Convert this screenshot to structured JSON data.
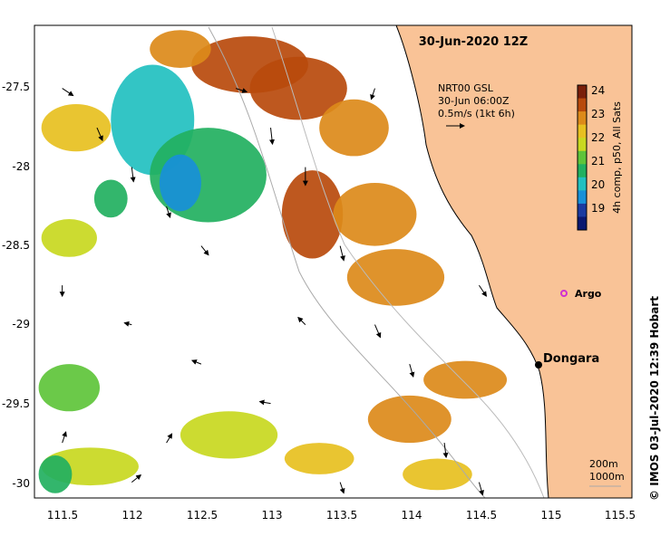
{
  "title": "30-Jun-2020 12Z",
  "current_legend": {
    "line1": "NRT00 GSL",
    "line2": "30-Jun 06:00Z",
    "line3": "0.5m/s (1kt 6h)"
  },
  "colorbar": {
    "label": "4h comp, p50, All Sats",
    "ticks": [
      "24",
      "23",
      "22",
      "21",
      "20",
      "19"
    ],
    "colors": [
      "#7a1f0a",
      "#b84a0c",
      "#dc8a1a",
      "#e7c020",
      "#c8d820",
      "#5ec43a",
      "#22b060",
      "#22c0c0",
      "#1890d8",
      "#1a3aa0",
      "#0a1870"
    ]
  },
  "axes": {
    "x_ticks": [
      "111.5",
      "112",
      "112.5",
      "113",
      "113.5",
      "114",
      "114.5",
      "115",
      "115.5"
    ],
    "y_ticks": [
      "-27.5",
      "-28",
      "-28.5",
      "-29",
      "-29.5",
      "-30"
    ],
    "xlim": [
      111.3,
      115.6
    ],
    "ylim": [
      -30.1,
      -27.1
    ]
  },
  "places": {
    "dongara": "Dongara",
    "argo": "Argo"
  },
  "depth_scale": {
    "shallow": "200m",
    "deep": "1000m"
  },
  "credit": "© IMOS 03-Jul-2020 12:39 Hobart",
  "colors": {
    "land": "#f9c397",
    "argo": "#d030d0"
  },
  "sst_patches": [
    {
      "cx": 112.85,
      "cy": -27.35,
      "rx": 0.42,
      "ry": 0.18,
      "color": "#b84a0c"
    },
    {
      "cx": 112.35,
      "cy": -27.25,
      "rx": 0.22,
      "ry": 0.12,
      "color": "#dc8a1a"
    },
    {
      "cx": 113.2,
      "cy": -27.5,
      "rx": 0.35,
      "ry": 0.2,
      "color": "#b84a0c"
    },
    {
      "cx": 113.6,
      "cy": -27.75,
      "rx": 0.25,
      "ry": 0.18,
      "color": "#dc8a1a"
    },
    {
      "cx": 112.15,
      "cy": -27.7,
      "rx": 0.3,
      "ry": 0.35,
      "color": "#22c0c0"
    },
    {
      "cx": 112.55,
      "cy": -28.05,
      "rx": 0.42,
      "ry": 0.3,
      "color": "#22b060"
    },
    {
      "cx": 112.35,
      "cy": -28.1,
      "rx": 0.15,
      "ry": 0.18,
      "color": "#1890d8"
    },
    {
      "cx": 113.3,
      "cy": -28.3,
      "rx": 0.22,
      "ry": 0.28,
      "color": "#b84a0c"
    },
    {
      "cx": 113.75,
      "cy": -28.3,
      "rx": 0.3,
      "ry": 0.2,
      "color": "#dc8a1a"
    },
    {
      "cx": 113.9,
      "cy": -28.7,
      "rx": 0.35,
      "ry": 0.18,
      "color": "#dc8a1a"
    },
    {
      "cx": 111.6,
      "cy": -27.75,
      "rx": 0.25,
      "ry": 0.15,
      "color": "#e7c020"
    },
    {
      "cx": 111.55,
      "cy": -28.45,
      "rx": 0.2,
      "ry": 0.12,
      "color": "#c8d820"
    },
    {
      "cx": 111.55,
      "cy": -29.4,
      "rx": 0.22,
      "ry": 0.15,
      "color": "#5ec43a"
    },
    {
      "cx": 111.7,
      "cy": -29.9,
      "rx": 0.35,
      "ry": 0.12,
      "color": "#c8d820"
    },
    {
      "cx": 111.45,
      "cy": -29.95,
      "rx": 0.12,
      "ry": 0.12,
      "color": "#22b060"
    },
    {
      "cx": 112.7,
      "cy": -29.7,
      "rx": 0.35,
      "ry": 0.15,
      "color": "#c8d820"
    },
    {
      "cx": 114.0,
      "cy": -29.6,
      "rx": 0.3,
      "ry": 0.15,
      "color": "#dc8a1a"
    },
    {
      "cx": 113.35,
      "cy": -29.85,
      "rx": 0.25,
      "ry": 0.1,
      "color": "#e7c020"
    },
    {
      "cx": 114.4,
      "cy": -29.35,
      "rx": 0.3,
      "ry": 0.12,
      "color": "#dc8a1a"
    },
    {
      "cx": 111.85,
      "cy": -28.2,
      "rx": 0.12,
      "ry": 0.12,
      "color": "#22b060"
    },
    {
      "cx": 114.2,
      "cy": -29.95,
      "rx": 0.25,
      "ry": 0.1,
      "color": "#e7c020"
    }
  ],
  "current_vectors": [
    {
      "lon": 111.5,
      "lat": -27.5,
      "u": 0.3,
      "v": -0.2
    },
    {
      "lon": 111.75,
      "lat": -27.75,
      "u": 0.15,
      "v": -0.35
    },
    {
      "lon": 112.0,
      "lat": -28.0,
      "u": 0.05,
      "v": -0.4
    },
    {
      "lon": 112.25,
      "lat": -28.25,
      "u": 0.1,
      "v": -0.3
    },
    {
      "lon": 112.5,
      "lat": -28.5,
      "u": 0.2,
      "v": -0.25
    },
    {
      "lon": 113.0,
      "lat": -27.75,
      "u": 0.05,
      "v": -0.45
    },
    {
      "lon": 113.25,
      "lat": -28.0,
      "u": 0.0,
      "v": -0.5
    },
    {
      "lon": 113.5,
      "lat": -28.5,
      "u": 0.1,
      "v": -0.4
    },
    {
      "lon": 113.75,
      "lat": -29.0,
      "u": 0.15,
      "v": -0.35
    },
    {
      "lon": 114.0,
      "lat": -29.25,
      "u": 0.1,
      "v": -0.35
    },
    {
      "lon": 114.25,
      "lat": -29.75,
      "u": 0.05,
      "v": -0.4
    },
    {
      "lon": 112.0,
      "lat": -29.0,
      "u": -0.2,
      "v": 0.05
    },
    {
      "lon": 112.5,
      "lat": -29.25,
      "u": -0.25,
      "v": 0.1
    },
    {
      "lon": 113.0,
      "lat": -29.5,
      "u": -0.3,
      "v": 0.05
    },
    {
      "lon": 111.5,
      "lat": -29.75,
      "u": 0.1,
      "v": 0.3
    },
    {
      "lon": 112.0,
      "lat": -30.0,
      "u": 0.25,
      "v": 0.2
    },
    {
      "lon": 113.5,
      "lat": -30.0,
      "u": 0.1,
      "v": -0.3
    },
    {
      "lon": 114.5,
      "lat": -28.75,
      "u": 0.2,
      "v": -0.3
    },
    {
      "lon": 111.5,
      "lat": -28.75,
      "u": 0.0,
      "v": -0.3
    },
    {
      "lon": 112.75,
      "lat": -27.5,
      "u": 0.3,
      "v": -0.1
    },
    {
      "lon": 113.75,
      "lat": -27.5,
      "u": -0.1,
      "v": -0.3
    },
    {
      "lon": 112.25,
      "lat": -29.75,
      "u": 0.15,
      "v": 0.25
    },
    {
      "lon": 113.25,
      "lat": -29.0,
      "u": -0.2,
      "v": 0.2
    },
    {
      "lon": 114.5,
      "lat": -30.0,
      "u": 0.1,
      "v": -0.35
    }
  ]
}
